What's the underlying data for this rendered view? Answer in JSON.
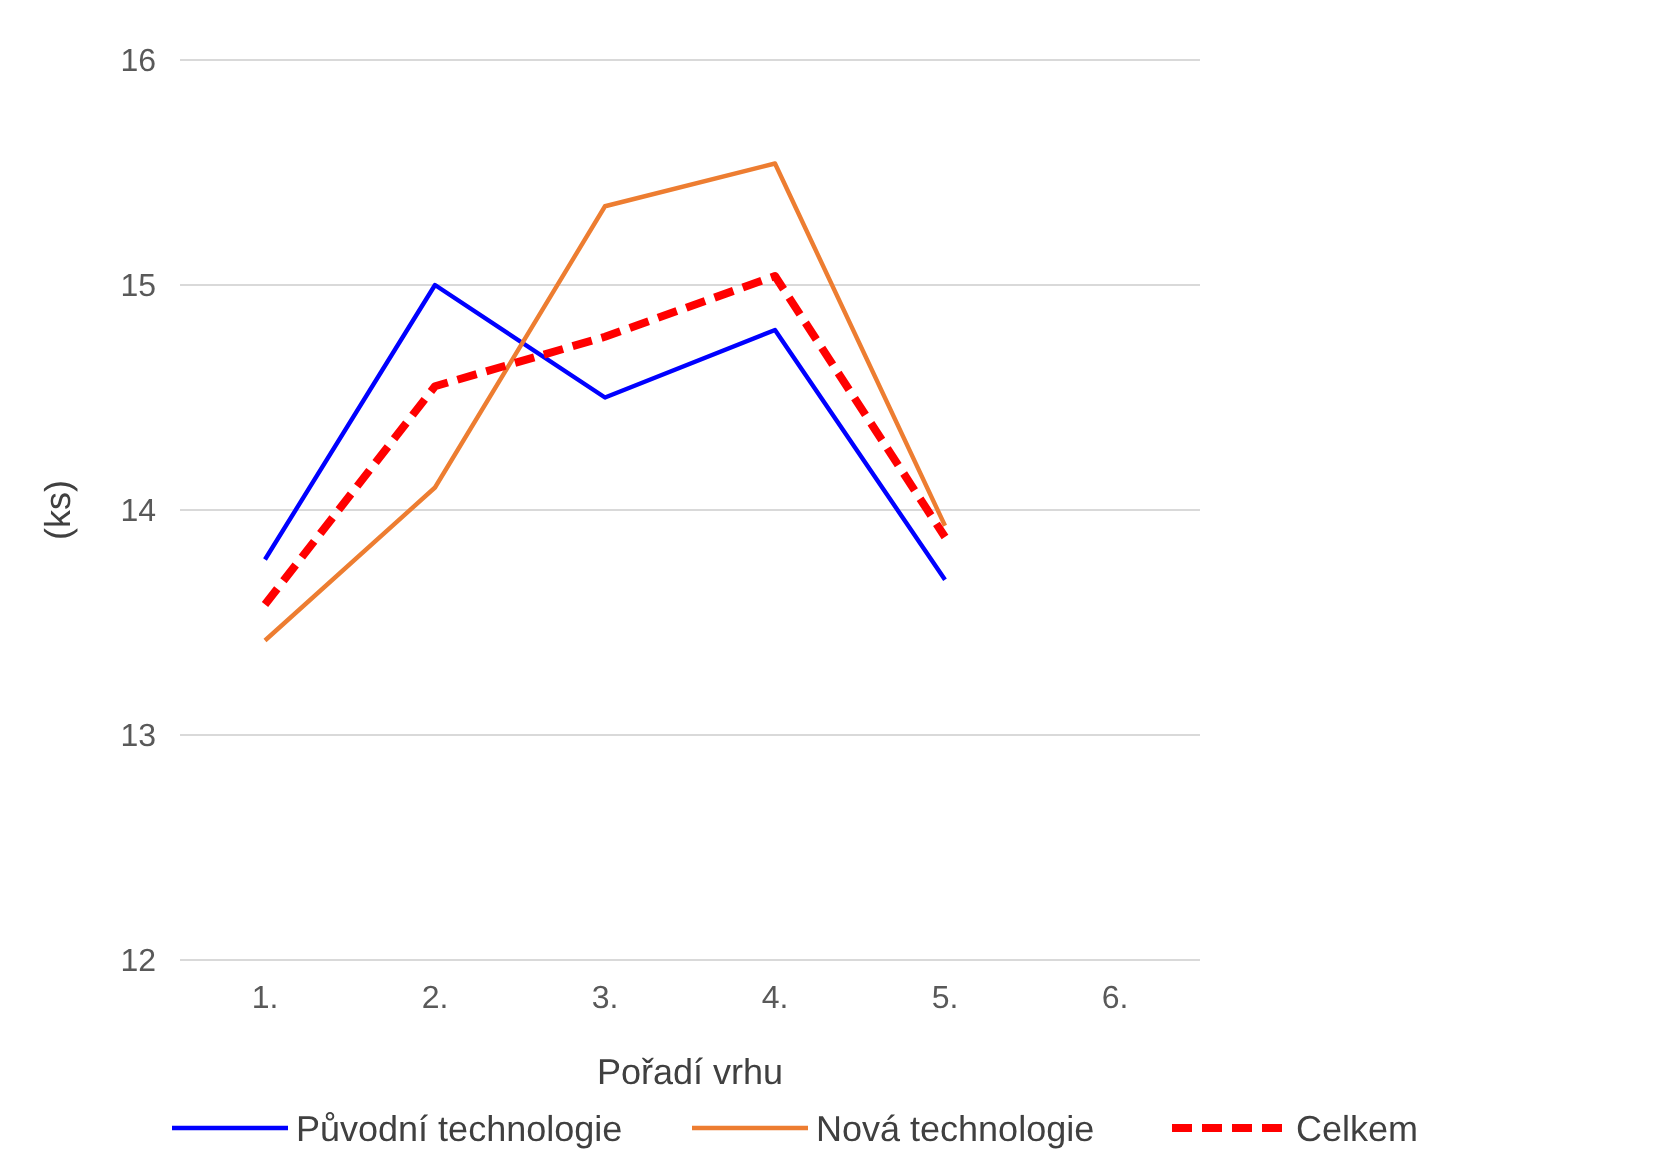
{
  "chart_data": {
    "type": "line",
    "xlabel": "Pořadí vrhu",
    "ylabel": "(ks)",
    "categories": [
      "1.",
      "2.",
      "3.",
      "4.",
      "5.",
      "6."
    ],
    "ylim": [
      12,
      16
    ],
    "yticks": [
      12,
      13,
      14,
      15,
      16
    ],
    "grid": "y",
    "legend": "bottom",
    "series": [
      {
        "name": "Původní technologie",
        "color": "#0000ff",
        "values": [
          13.78,
          15.0,
          14.5,
          14.8,
          13.69,
          null
        ]
      },
      {
        "name": "Nová technologie",
        "color": "#ed7d31",
        "values": [
          13.42,
          14.1,
          15.35,
          15.54,
          13.93,
          null
        ]
      },
      {
        "name": "Celkem",
        "color": "#ff0000",
        "line_style": "dashed",
        "values": [
          13.58,
          14.55,
          14.77,
          15.04,
          13.88,
          null
        ]
      }
    ]
  }
}
